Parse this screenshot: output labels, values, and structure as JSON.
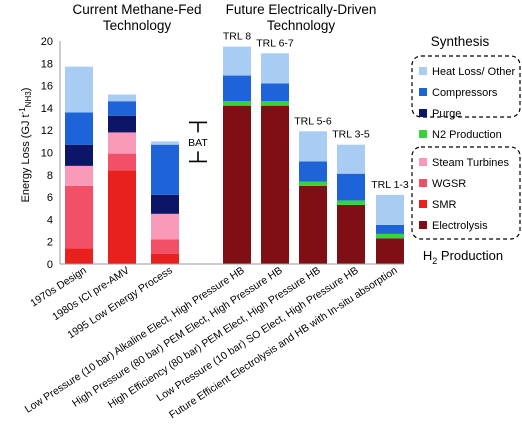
{
  "chart_data": {
    "type": "bar",
    "stacked": true,
    "group_titles": [
      {
        "line1": "Current Methane-Fed",
        "line2": "Technology"
      },
      {
        "line1": "Future Electrically-Driven",
        "line2": "Technology"
      }
    ],
    "ylabel": "Energy Loss (GJ t",
    "ylabel_sup": "-1",
    "ylabel_sub": "NH3",
    "ylabel_close": ")",
    "ylim": [
      0,
      20
    ],
    "yticks": [
      "0",
      "2",
      "4",
      "6",
      "8",
      "10",
      "12",
      "14",
      "16",
      "18",
      "20"
    ],
    "categories": [
      "1970s Design",
      "1980s ICI pre-AMV",
      "1995 Low Energy Process",
      "Low Pressure (10 bar) Alkaline Elect, High Pressure HB",
      "High Pressure (80 bar) PEM Elect, High Pressure HB",
      "High Efficiency (80 bar) PEM Elect, High Pressure HB",
      "Low Pressure (10 bar) SO Elect, High Pressure HB",
      "Future Efficient Electrolysis and HB with In-situ absorption"
    ],
    "trl_labels": [
      "",
      "",
      "",
      "TRL 8",
      "TRL 6-7",
      "TRL 5-6",
      "TRL 3-5",
      "TRL 1-3"
    ],
    "series": [
      {
        "name": "Electrolysis",
        "color": "#7f0f14",
        "values": [
          0,
          0,
          0,
          14.2,
          14.2,
          7.0,
          5.3,
          2.3
        ]
      },
      {
        "name": "SMR",
        "color": "#e8211f",
        "values": [
          1.4,
          8.4,
          0.9,
          0,
          0,
          0,
          0,
          0
        ]
      },
      {
        "name": "WGSR",
        "color": "#f25066",
        "values": [
          5.6,
          1.5,
          1.3,
          0,
          0,
          0,
          0,
          0
        ]
      },
      {
        "name": "Steam Turbines",
        "color": "#f99ab9",
        "values": [
          1.8,
          1.9,
          2.3,
          0,
          0,
          0,
          0,
          0
        ]
      },
      {
        "name": "N2 Production",
        "color": "#36d43a",
        "values": [
          0,
          0,
          0,
          0.4,
          0.4,
          0.4,
          0.4,
          0.4
        ]
      },
      {
        "name": "Purge",
        "color": "#0d1666",
        "values": [
          1.9,
          1.5,
          1.7,
          0,
          0,
          0,
          0,
          0
        ]
      },
      {
        "name": "Compressors",
        "color": "#1e64d8",
        "values": [
          2.9,
          1.3,
          4.5,
          2.3,
          1.6,
          1.8,
          2.4,
          0.8
        ]
      },
      {
        "name": "Heat Loss/ Other",
        "color": "#a9cdf2",
        "values": [
          4.1,
          0.6,
          0.3,
          2.6,
          2.7,
          2.7,
          2.6,
          2.7
        ]
      }
    ],
    "annotation": {
      "label": "BAT",
      "range": [
        9.2,
        12.7
      ]
    },
    "legend": {
      "position": "right",
      "synthesis_title": "Synthesis",
      "h2_title_main": "H",
      "h2_title_sub": "2",
      "h2_title_rest": " Production",
      "synthesis_items": [
        "Heat Loss/ Other",
        "Compressors",
        "Purge"
      ],
      "middle_item": "N2 Production",
      "h2_items": [
        "Steam Turbines",
        "WGSR",
        "SMR",
        "Electrolysis"
      ]
    }
  }
}
